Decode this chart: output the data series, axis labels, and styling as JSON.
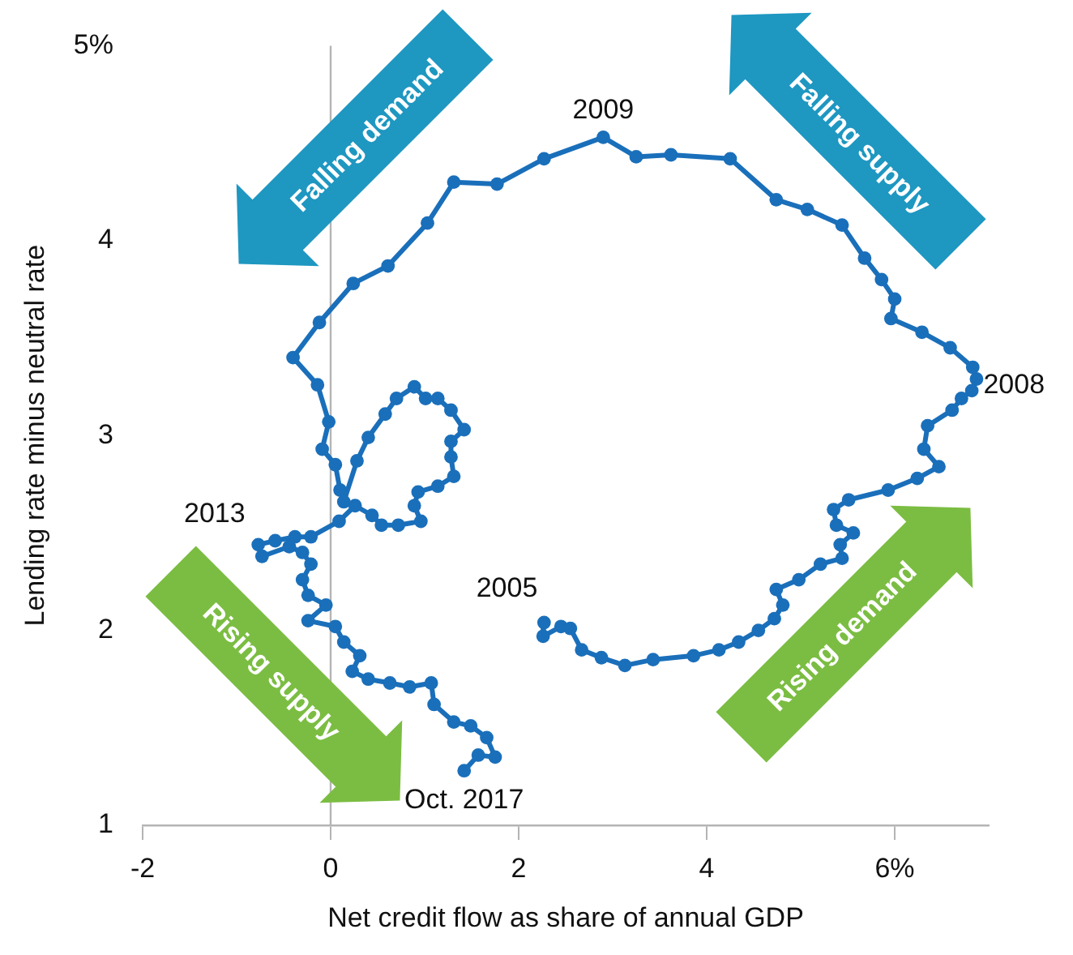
{
  "chart_data": {
    "type": "line",
    "xlabel": "Net credit flow as share of annual GDP",
    "ylabel": "Lending rate minus neutral rate",
    "xlim": [
      -2,
      7
    ],
    "xticks": [
      -2,
      0,
      2,
      4,
      {
        "value": 6,
        "label": "6%"
      }
    ],
    "ylim": [
      1,
      5
    ],
    "yticks": [
      1,
      2,
      3,
      4,
      {
        "value": 5,
        "label": "5%"
      }
    ],
    "marker": "circle",
    "line_style": "solid",
    "ref_lines": [
      {
        "axis": "x",
        "value": 0,
        "color": "#b4b4b4"
      }
    ],
    "series": [
      {
        "color": "#1a6fba",
        "x": [
          2.27,
          2.26,
          2.45,
          2.55,
          2.67,
          2.88,
          3.13,
          3.43,
          3.86,
          4.13,
          4.34,
          4.55,
          4.72,
          4.81,
          4.74,
          4.98,
          5.21,
          5.44,
          5.42,
          5.56,
          5.38,
          5.35,
          5.51,
          5.93,
          6.24,
          6.47,
          6.31,
          6.35,
          6.61,
          6.71,
          6.82,
          6.87,
          6.83,
          6.59,
          6.29,
          5.96,
          6.0,
          5.86,
          5.68,
          5.44,
          5.07,
          4.74,
          4.25,
          3.62,
          3.25,
          2.9,
          2.27,
          1.77,
          1.31,
          1.03,
          0.61,
          0.24,
          -0.12,
          -0.4,
          -0.14,
          -0.02,
          -0.09,
          0.05,
          0.1,
          0.14,
          0.28,
          0.4,
          0.58,
          0.7,
          0.89,
          1.01,
          1.14,
          1.28,
          1.42,
          1.28,
          1.28,
          1.31,
          1.14,
          0.93,
          0.89,
          0.96,
          0.72,
          0.54,
          0.44,
          0.26,
          0.09,
          -0.21,
          -0.38,
          -0.59,
          -0.77,
          -0.73,
          -0.44,
          -0.3,
          -0.21,
          -0.3,
          -0.24,
          -0.05,
          -0.24,
          0.05,
          0.14,
          0.31,
          0.23,
          0.4,
          0.63,
          0.84,
          1.07,
          1.1,
          1.31,
          1.49,
          1.66,
          1.75,
          1.57,
          1.42
        ],
        "values": [
          2.04,
          1.97,
          2.02,
          2.01,
          1.9,
          1.86,
          1.82,
          1.85,
          1.87,
          1.9,
          1.94,
          2.0,
          2.06,
          2.13,
          2.21,
          2.26,
          2.34,
          2.37,
          2.44,
          2.5,
          2.54,
          2.62,
          2.67,
          2.72,
          2.78,
          2.84,
          2.93,
          3.05,
          3.13,
          3.19,
          3.23,
          3.29,
          3.35,
          3.45,
          3.53,
          3.6,
          3.7,
          3.8,
          3.91,
          4.08,
          4.16,
          4.21,
          4.42,
          4.44,
          4.43,
          4.53,
          4.42,
          4.29,
          4.3,
          4.09,
          3.87,
          3.78,
          3.58,
          3.4,
          3.26,
          3.07,
          2.93,
          2.85,
          2.72,
          2.66,
          2.87,
          2.99,
          3.11,
          3.19,
          3.25,
          3.19,
          3.19,
          3.13,
          3.03,
          2.97,
          2.89,
          2.79,
          2.74,
          2.71,
          2.64,
          2.56,
          2.54,
          2.54,
          2.59,
          2.64,
          2.56,
          2.48,
          2.48,
          2.46,
          2.44,
          2.38,
          2.43,
          2.4,
          2.34,
          2.26,
          2.18,
          2.13,
          2.05,
          2.02,
          1.94,
          1.87,
          1.79,
          1.75,
          1.73,
          1.71,
          1.73,
          1.62,
          1.53,
          1.51,
          1.45,
          1.35,
          1.36,
          1.28
        ]
      }
    ],
    "annotations": [
      {
        "text": "2005",
        "x": 2.27,
        "y": 2.04
      },
      {
        "text": "2009",
        "x": 2.9,
        "y": 4.53
      },
      {
        "text": "2008",
        "x": 6.84,
        "y": 3.29
      },
      {
        "text": "2013",
        "x": -0.77,
        "y": 2.44
      },
      {
        "text": "Oct. 2017",
        "x": 1.42,
        "y": 1.28
      },
      "Falling demand",
      "Falling supply",
      "Rising supply",
      "Rising demand"
    ]
  }
}
